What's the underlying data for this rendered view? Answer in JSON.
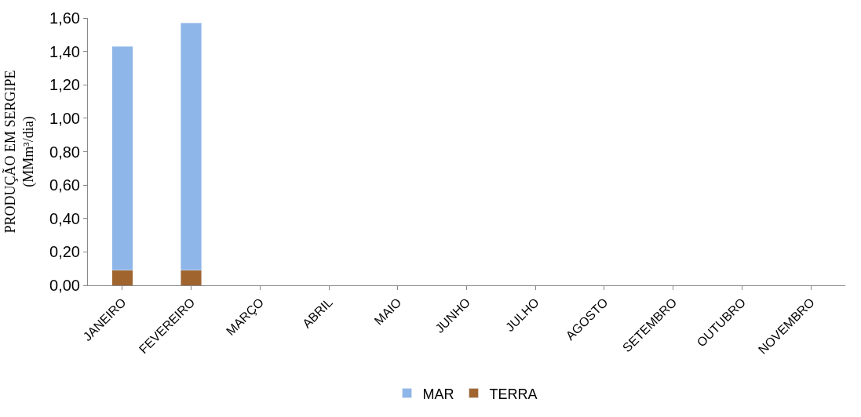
{
  "chart_data": {
    "type": "bar",
    "stacked": true,
    "ylabel": "PRODUÇÃO EM SERGIPE\n(MMm³/dia)",
    "categories": [
      "JANEIRO",
      "FEVEREIRO",
      "MARÇO",
      "ABRIL",
      "MAIO",
      "JUNHO",
      "JULHO",
      "AGOSTO",
      "SETEMBRO",
      "OUTUBRO",
      "NOVEMBRO"
    ],
    "series": [
      {
        "name": "TERRA",
        "color": "#a0652e",
        "values": [
          0.09,
          0.09,
          null,
          null,
          null,
          null,
          null,
          null,
          null,
          null,
          null
        ]
      },
      {
        "name": "MAR",
        "color": "#8fb6e8",
        "values": [
          1.34,
          1.48,
          null,
          null,
          null,
          null,
          null,
          null,
          null,
          null,
          null
        ]
      }
    ],
    "ylim": [
      0,
      1.6
    ],
    "yticks": [
      {
        "value": 0,
        "label": "0,00"
      },
      {
        "value": 0.2,
        "label": "0,20"
      },
      {
        "value": 0.4,
        "label": "0,40"
      },
      {
        "value": 0.6,
        "label": "0,60"
      },
      {
        "value": 0.8,
        "label": "0,80"
      },
      {
        "value": 1.0,
        "label": "1,00"
      },
      {
        "value": 1.2,
        "label": "1,20"
      },
      {
        "value": 1.4,
        "label": "1,40"
      },
      {
        "value": 1.6,
        "label": "1,60"
      }
    ],
    "grid": false,
    "legend": "bottom"
  }
}
